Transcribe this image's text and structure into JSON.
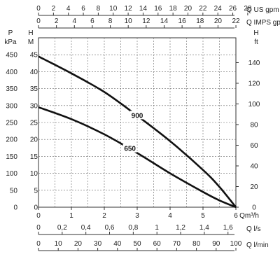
{
  "chart_data": {
    "type": "line",
    "x_unit": "Qm³/h",
    "x_ticks": [
      "0",
      "1",
      "2",
      "3",
      "4",
      "5",
      "6"
    ],
    "xlim": [
      0,
      6
    ],
    "ylim_m": [
      0,
      50
    ],
    "left_axes": [
      {
        "unit_line1": "P",
        "unit_line2": "kPa",
        "ticks": [
          "0",
          "50",
          "100",
          "150",
          "200",
          "250",
          "300",
          "350",
          "400",
          "450"
        ]
      },
      {
        "unit_line1": "H",
        "unit_line2": "M",
        "ticks": [
          "0",
          "5",
          "10",
          "15",
          "20",
          "25",
          "30",
          "35",
          "40",
          "45"
        ]
      }
    ],
    "right_axis": {
      "unit_line1": "H",
      "unit_line2": "ft",
      "ticks": [
        "0",
        "20",
        "40",
        "60",
        "80",
        "100",
        "120",
        "140"
      ]
    },
    "top_axes": [
      {
        "unit": "Q US gpm",
        "ticks": [
          "0",
          "2",
          "4",
          "6",
          "8",
          "10",
          "12",
          "14",
          "16",
          "18",
          "20",
          "22",
          "24",
          "26",
          "28"
        ]
      },
      {
        "unit": "Q IMPS gpm",
        "ticks": [
          "0",
          "2",
          "4",
          "6",
          "8",
          "10",
          "12",
          "14",
          "16",
          "18",
          "20",
          "22"
        ]
      }
    ],
    "bottom_axes": [
      {
        "unit": "Q l/s",
        "ticks": [
          "0",
          "0,2",
          "0,4",
          "0,6",
          "0,8",
          "1",
          "1,2",
          "1,4",
          "1,6"
        ]
      },
      {
        "unit": "Q l/min",
        "ticks": [
          "0",
          "10",
          "20",
          "30",
          "40",
          "50",
          "60",
          "70",
          "80",
          "90",
          "100"
        ]
      }
    ],
    "series": [
      {
        "name": "900",
        "x": [
          0,
          1,
          2,
          3,
          4,
          5,
          5.5,
          6
        ],
        "y": [
          44.5,
          39.5,
          34,
          27,
          19.5,
          11,
          6,
          0
        ]
      },
      {
        "name": "650",
        "x": [
          0,
          1,
          2,
          3,
          4,
          5,
          5.5,
          6
        ],
        "y": [
          29.5,
          26,
          21.5,
          16,
          10,
          4.5,
          2,
          0
        ]
      }
    ],
    "grid": true
  }
}
